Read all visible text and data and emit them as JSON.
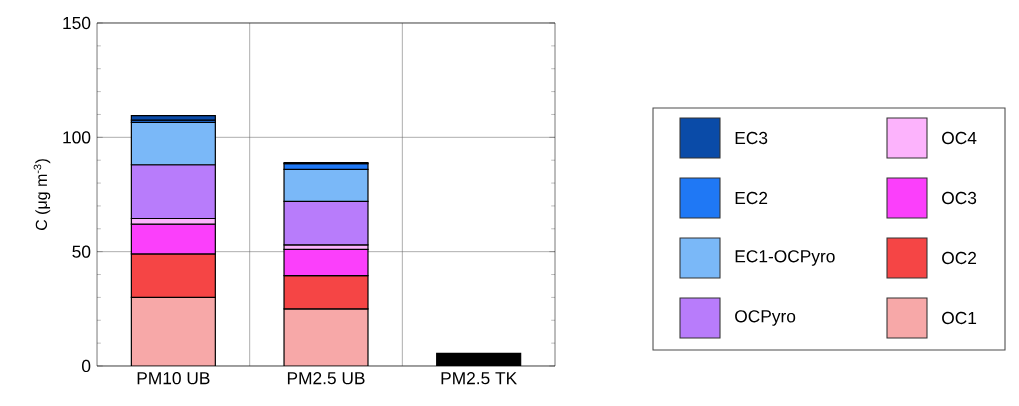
{
  "chart_data": {
    "type": "bar",
    "stacked": true,
    "ylabel": "C (μg m$^{-3}$)",
    "categories": [
      "PM10 UB",
      "PM2.5 UB",
      "PM2.5 TK"
    ],
    "ylim": [
      0,
      150
    ],
    "yticks": [
      0,
      50,
      100,
      150
    ],
    "grid": true,
    "legend": "right",
    "series": [
      {
        "name": "OC1",
        "color": "#f7a8a8",
        "values": [
          30,
          25,
          null
        ]
      },
      {
        "name": "OC2",
        "color": "#f54545",
        "values": [
          19,
          14.5,
          null
        ]
      },
      {
        "name": "OC3",
        "color": "#fb3ffb",
        "values": [
          13,
          11.5,
          null
        ]
      },
      {
        "name": "OC4",
        "color": "#fcb3fc",
        "values": [
          2.5,
          2,
          null
        ]
      },
      {
        "name": "OCPyro",
        "color": "#b87cfb",
        "values": [
          23.5,
          19,
          null
        ]
      },
      {
        "name": "EC1-OCPyro",
        "color": "#7ab8f8",
        "values": [
          18.5,
          14,
          null
        ]
      },
      {
        "name": "EC2",
        "color": "#1f78f5",
        "values": [
          1,
          2.5,
          null
        ]
      },
      {
        "name": "EC3",
        "color": "#0a4ba8",
        "values": [
          2,
          0.5,
          null
        ]
      },
      {
        "color": "#000000",
        "values": [
          null,
          null,
          5.5
        ]
      }
    ]
  }
}
